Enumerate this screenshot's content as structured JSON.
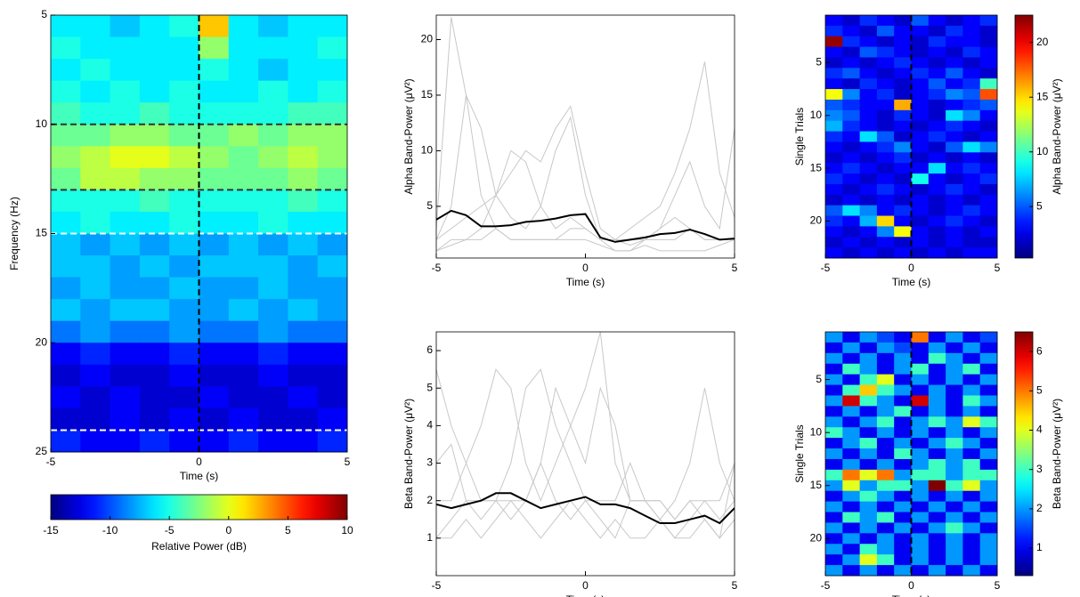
{
  "chart_data": [
    {
      "type": "heatmap",
      "xlabel": "Time (s)",
      "ylabel": "Frequency (Hz)",
      "xlim": [
        -5,
        5
      ],
      "ylim": [
        25,
        5
      ],
      "xticks": [
        -5,
        0,
        5
      ],
      "yticks": [
        5,
        10,
        15,
        20,
        25
      ],
      "z": [
        [
          -6,
          -6,
          -7,
          -6,
          -5,
          2,
          -6,
          -7,
          -6,
          -6
        ],
        [
          -5,
          -6,
          -6,
          -6,
          -6,
          -2,
          -6,
          -6,
          -6,
          -5
        ],
        [
          -6,
          -5,
          -6,
          -6,
          -6,
          -5,
          -6,
          -7,
          -6,
          -6
        ],
        [
          -5,
          -6,
          -5,
          -6,
          -5,
          -6,
          -6,
          -5,
          -6,
          -5
        ],
        [
          -4,
          -5,
          -5,
          -4,
          -5,
          -5,
          -5,
          -5,
          -4,
          -4
        ],
        [
          -3,
          -3,
          -2,
          -2,
          -3,
          -3,
          -2,
          -3,
          -2,
          -2
        ],
        [
          -2,
          -1,
          0,
          0,
          -1,
          -2,
          -3,
          -2,
          -1,
          -2
        ],
        [
          -3,
          -1,
          -1,
          -2,
          -2,
          -3,
          -3,
          -3,
          -2,
          -3
        ],
        [
          -5,
          -5,
          -5,
          -4,
          -5,
          -5,
          -5,
          -5,
          -4,
          -5
        ],
        [
          -6,
          -5,
          -6,
          -6,
          -5,
          -6,
          -6,
          -5,
          -6,
          -6
        ],
        [
          -7,
          -8,
          -7,
          -8,
          -7,
          -8,
          -7,
          -8,
          -7,
          -8
        ],
        [
          -7,
          -7,
          -8,
          -7,
          -8,
          -7,
          -7,
          -7,
          -8,
          -7
        ],
        [
          -8,
          -7,
          -8,
          -8,
          -7,
          -8,
          -8,
          -7,
          -8,
          -8
        ],
        [
          -7,
          -8,
          -7,
          -7,
          -8,
          -8,
          -7,
          -8,
          -7,
          -8
        ],
        [
          -9,
          -8,
          -9,
          -9,
          -8,
          -9,
          -9,
          -8,
          -9,
          -9
        ],
        [
          -12,
          -11,
          -12,
          -12,
          -11,
          -12,
          -12,
          -11,
          -12,
          -12
        ],
        [
          -13,
          -12,
          -13,
          -13,
          -12,
          -13,
          -13,
          -12,
          -13,
          -13
        ],
        [
          -12,
          -13,
          -12,
          -13,
          -13,
          -12,
          -13,
          -13,
          -12,
          -13
        ],
        [
          -13,
          -13,
          -12,
          -13,
          -12,
          -13,
          -12,
          -13,
          -13,
          -12
        ],
        [
          -11,
          -12,
          -12,
          -11,
          -12,
          -12,
          -11,
          -12,
          -12,
          -11
        ]
      ],
      "clim": [
        -15,
        10
      ],
      "cticks": [
        -15,
        -10,
        -5,
        0,
        5,
        10
      ],
      "clabel": "Relative Power (dB)",
      "colorbar": "bottom",
      "vlines": [
        {
          "value": 0,
          "color": "#000000"
        }
      ],
      "hlines": [
        {
          "value": 10,
          "color": "#333333"
        },
        {
          "value": 13,
          "color": "#333333"
        },
        {
          "value": 15,
          "color": "#ffffff"
        },
        {
          "value": 24,
          "color": "#ffffff"
        }
      ]
    },
    {
      "type": "line",
      "xlabel": "Time (s)",
      "ylabel": "Alpha Band-Power (μV²)",
      "xlim": [
        -5,
        5
      ],
      "ylim": [
        0.35,
        22.2
      ],
      "xticks": [
        -5,
        0,
        5
      ],
      "yticks": [
        5,
        10,
        15,
        20
      ],
      "x": [
        -5,
        -4.5,
        -4,
        -3.5,
        -3,
        -2.5,
        -2,
        -1.5,
        -1,
        -0.5,
        0,
        0.5,
        1,
        1.5,
        2,
        2.5,
        3,
        3.5,
        4,
        4.5,
        5
      ],
      "series": [
        {
          "color": "#c8c8c8",
          "values": [
            3,
            22,
            15,
            6,
            3,
            2,
            2,
            2,
            2,
            2,
            2,
            1.5,
            1,
            1,
            1.5,
            1,
            1,
            1,
            1,
            1.5,
            2
          ]
        },
        {
          "color": "#c8c8c8",
          "values": [
            2,
            3,
            4,
            5,
            6,
            8,
            10,
            9,
            12,
            14,
            8,
            3,
            2,
            2,
            2,
            3,
            4,
            3,
            2,
            2,
            2
          ]
        },
        {
          "color": "#c8c8c8",
          "values": [
            1,
            1.5,
            2,
            2,
            3,
            2,
            2,
            2,
            2,
            3,
            3,
            2,
            2,
            3,
            4,
            5,
            8,
            12,
            18,
            8,
            4
          ]
        },
        {
          "color": "#c8c8c8",
          "values": [
            2,
            5,
            15,
            12,
            6,
            4,
            3,
            5,
            10,
            13,
            6,
            2,
            2,
            1.5,
            2,
            3,
            6,
            9,
            5,
            3,
            12
          ]
        },
        {
          "color": "#c8c8c8",
          "values": [
            1,
            2,
            2,
            3,
            6,
            10,
            9,
            5,
            3,
            4,
            3,
            2,
            1,
            1,
            2,
            2,
            2,
            3,
            2,
            2,
            2
          ]
        },
        {
          "color": "#000000",
          "values": [
            3.8,
            4.6,
            4.2,
            3.2,
            3.2,
            3.3,
            3.6,
            3.7,
            3.9,
            4.2,
            4.3,
            2.2,
            1.8,
            2.0,
            2.2,
            2.5,
            2.6,
            2.9,
            2.5,
            2.0,
            2.1
          ]
        }
      ]
    },
    {
      "type": "heatmap",
      "xlabel": "Time (s)",
      "ylabel": "Single Trials",
      "xlim": [
        -5,
        5
      ],
      "ylim": [
        23.5,
        0.5
      ],
      "xticks": [
        -5,
        0,
        5
      ],
      "yticks": [
        5,
        10,
        15,
        20
      ],
      "z": [
        [
          3,
          2,
          4,
          3,
          2,
          5,
          3,
          2,
          3,
          4
        ],
        [
          4,
          3,
          2,
          5,
          3,
          3,
          2,
          4,
          3,
          2
        ],
        [
          22,
          4,
          3,
          2,
          3,
          2,
          4,
          3,
          3,
          2
        ],
        [
          3,
          2,
          5,
          4,
          3,
          2,
          3,
          2,
          4,
          3
        ],
        [
          2,
          3,
          2,
          3,
          4,
          3,
          2,
          3,
          2,
          3
        ],
        [
          4,
          5,
          3,
          2,
          3,
          4,
          3,
          5,
          3,
          2
        ],
        [
          3,
          2,
          4,
          3,
          2,
          3,
          5,
          3,
          4,
          10
        ],
        [
          14,
          6,
          3,
          4,
          2,
          3,
          4,
          6,
          5,
          18
        ],
        [
          5,
          4,
          3,
          3,
          16,
          3,
          2,
          3,
          4,
          5
        ],
        [
          6,
          5,
          3,
          2,
          4,
          3,
          2,
          8,
          6,
          3
        ],
        [
          7,
          4,
          3,
          2,
          3,
          2,
          3,
          4,
          3,
          2
        ],
        [
          4,
          3,
          8,
          5,
          2,
          3,
          4,
          3,
          2,
          3
        ],
        [
          3,
          2,
          3,
          4,
          6,
          3,
          2,
          5,
          8,
          6
        ],
        [
          2,
          3,
          2,
          3,
          4,
          2,
          3,
          2,
          3,
          2
        ],
        [
          3,
          4,
          3,
          2,
          3,
          3,
          8,
          3,
          4,
          3
        ],
        [
          4,
          3,
          2,
          3,
          2,
          9,
          3,
          2,
          3,
          4
        ],
        [
          3,
          2,
          3,
          4,
          3,
          2,
          3,
          4,
          3,
          2
        ],
        [
          2,
          3,
          2,
          3,
          2,
          3,
          2,
          3,
          2,
          3
        ],
        [
          5,
          8,
          6,
          3,
          4,
          3,
          2,
          3,
          4,
          3
        ],
        [
          4,
          3,
          7,
          15,
          3,
          2,
          3,
          4,
          3,
          2
        ],
        [
          3,
          2,
          3,
          6,
          14,
          3,
          2,
          3,
          2,
          3
        ],
        [
          2,
          3,
          2,
          3,
          2,
          3,
          2,
          3,
          2,
          2
        ],
        [
          3,
          2,
          3,
          2,
          3,
          2,
          3,
          2,
          3,
          3
        ]
      ],
      "clim": [
        0.3,
        22.5
      ],
      "cticks": [
        5,
        10,
        15,
        20
      ],
      "clabel": "Alpha Band-Power (μV²)",
      "colorbar": "right",
      "vlines": [
        {
          "value": 0,
          "color": "#000000"
        }
      ],
      "hlines": []
    },
    {
      "type": "line",
      "xlabel": "Time (s)",
      "ylabel": "Beta Band-Power (μV²)",
      "xlim": [
        -5,
        5
      ],
      "ylim": [
        0,
        6.5
      ],
      "xticks": [
        -5,
        0,
        5
      ],
      "yticks": [
        1,
        2,
        3,
        4,
        5,
        6
      ],
      "x": [
        -5,
        -4.5,
        -4,
        -3.5,
        -3,
        -2.5,
        -2,
        -1.5,
        -1,
        -0.5,
        0,
        0.5,
        1,
        1.5,
        2,
        2.5,
        3,
        3.5,
        4,
        4.5,
        5
      ],
      "series": [
        {
          "color": "#c8c8c8",
          "values": [
            5.5,
            4,
            3,
            2,
            2,
            1.5,
            2,
            3,
            2,
            1.5,
            2,
            1.5,
            1,
            2,
            2,
            2,
            1.5,
            2,
            1.5,
            1,
            3
          ]
        },
        {
          "color": "#c8c8c8",
          "values": [
            2,
            2,
            3,
            4,
            5.5,
            5,
            3,
            2,
            3,
            4,
            5,
            6.5,
            3,
            2,
            2,
            2,
            1.5,
            2,
            2,
            1.5,
            2
          ]
        },
        {
          "color": "#c8c8c8",
          "values": [
            1,
            1.5,
            2,
            2,
            2,
            3,
            5,
            5.5,
            4,
            3,
            2,
            2,
            2,
            3,
            2,
            1.5,
            2,
            3,
            5,
            3,
            2
          ]
        },
        {
          "color": "#c8c8c8",
          "values": [
            3,
            3.5,
            2,
            1.5,
            2,
            2,
            2,
            3,
            5,
            4,
            3,
            5,
            4,
            2,
            2,
            1.5,
            1,
            1.5,
            2,
            2,
            3
          ]
        },
        {
          "color": "#c8c8c8",
          "values": [
            1,
            1,
            1.5,
            1,
            1.5,
            2,
            1.5,
            1,
            1.5,
            2,
            1.5,
            1,
            1.5,
            1,
            1,
            1.5,
            1,
            1,
            1.5,
            1,
            1.5
          ]
        },
        {
          "color": "#000000",
          "values": [
            1.9,
            1.8,
            1.9,
            2.0,
            2.2,
            2.2,
            2.0,
            1.8,
            1.9,
            2.0,
            2.1,
            1.9,
            1.9,
            1.8,
            1.6,
            1.4,
            1.4,
            1.5,
            1.6,
            1.4,
            1.8
          ]
        }
      ]
    },
    {
      "type": "heatmap",
      "xlabel": "Time (s)",
      "ylabel": "Single Trials",
      "xlim": [
        -5,
        5
      ],
      "ylim": [
        23.5,
        0.5
      ],
      "xticks": [
        -5,
        0,
        5
      ],
      "yticks": [
        5,
        10,
        15,
        20
      ],
      "z": [
        [
          2,
          1,
          2,
          1.5,
          1,
          5,
          1,
          2,
          1,
          1.5
        ],
        [
          1,
          2,
          1,
          2,
          1.5,
          1,
          2,
          1,
          2,
          1
        ],
        [
          2,
          1,
          2,
          1,
          2,
          1,
          3,
          2,
          1,
          2
        ],
        [
          1,
          3,
          2,
          1,
          2,
          3,
          1,
          2,
          3,
          1
        ],
        [
          2,
          1,
          3,
          4,
          1,
          2,
          1,
          2,
          1,
          2
        ],
        [
          1,
          3,
          4.5,
          3,
          2,
          1,
          2,
          1,
          2,
          1
        ],
        [
          2,
          6,
          3,
          2,
          1,
          6,
          2,
          1,
          3,
          2
        ],
        [
          1,
          2,
          1,
          2,
          3,
          1,
          2,
          1,
          2,
          1
        ],
        [
          2,
          1,
          2,
          3,
          1,
          2,
          3,
          2,
          4,
          3
        ],
        [
          3,
          2,
          1,
          2,
          1,
          2,
          1,
          2,
          1,
          2
        ],
        [
          1,
          2,
          3,
          1,
          2,
          1,
          2,
          3,
          2,
          1
        ],
        [
          2,
          1,
          2,
          1,
          3,
          2,
          1,
          2,
          1,
          2
        ],
        [
          1,
          2,
          1,
          2,
          1,
          2,
          3,
          2,
          3,
          1
        ],
        [
          3,
          5,
          4,
          5,
          2,
          3,
          3,
          2,
          3,
          3
        ],
        [
          2,
          4,
          2,
          3,
          3,
          2,
          6.5,
          3,
          4,
          2
        ],
        [
          1,
          2,
          3,
          2,
          1,
          2,
          1,
          2,
          1,
          2
        ],
        [
          2,
          1,
          2,
          1,
          2,
          1,
          2,
          1,
          2,
          1
        ],
        [
          1,
          3,
          2,
          3,
          1,
          2,
          1,
          2,
          1,
          2
        ],
        [
          2,
          1,
          2,
          1,
          2,
          1,
          2,
          3,
          2,
          1
        ],
        [
          1,
          2,
          1,
          2,
          1,
          2,
          1,
          2,
          1,
          2
        ],
        [
          2,
          1,
          3,
          2,
          1,
          2,
          1,
          2,
          1,
          2
        ],
        [
          1,
          2,
          4,
          3,
          1,
          2,
          1,
          2,
          1,
          2
        ],
        [
          2,
          1,
          2,
          1,
          2,
          1,
          2,
          1,
          2,
          1
        ]
      ],
      "clim": [
        0.3,
        6.5
      ],
      "cticks": [
        1,
        2,
        3,
        4,
        5,
        6
      ],
      "clabel": "Beta Band-Power (μV²)",
      "colorbar": "right",
      "vlines": [
        {
          "value": 0,
          "color": "#000000"
        }
      ],
      "hlines": []
    }
  ]
}
